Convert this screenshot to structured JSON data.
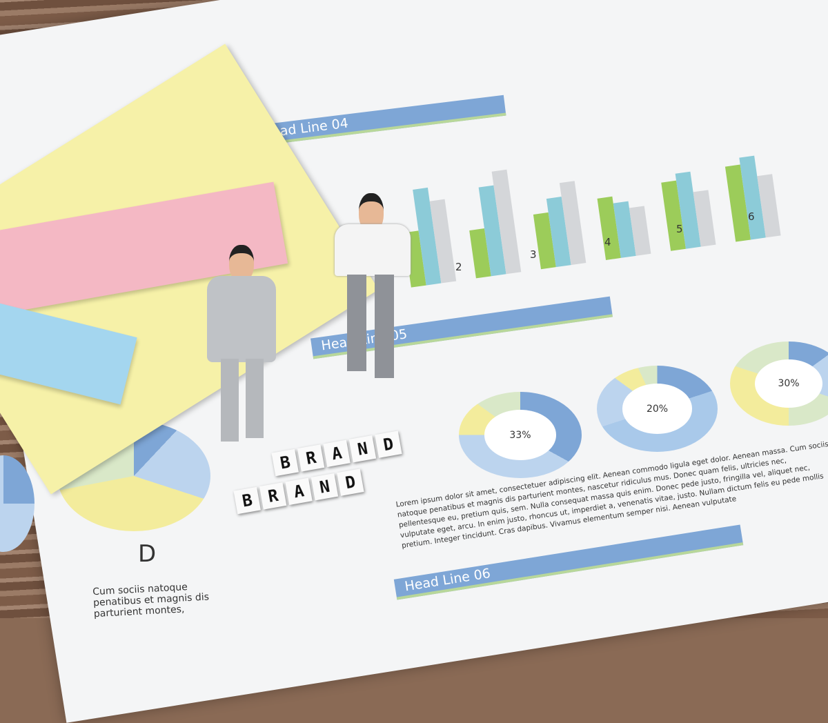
{
  "headlines": [
    "Head Line 04",
    "Head Line 05",
    "Head Line 06"
  ],
  "bar_labels": [
    "2",
    "3",
    "4",
    "5",
    "6"
  ],
  "donuts": [
    {
      "label": "33%"
    },
    {
      "label": "20%"
    },
    {
      "label": "30%"
    }
  ],
  "pie_label": "D",
  "pie_caption": "Cum sociis natoque penatibus et magnis dis parturient montes,",
  "blocks": {
    "top": "BRAND",
    "bottom": "BRAND"
  },
  "lorem": "Lorem ipsum dolor sit amet, consectetuer adipiscing elit. Aenean commodo ligula eget dolor. Aenean massa. Cum sociis natoque penatibus et magnis dis parturient montes, nascetur ridiculus mus. Donec quam felis, ultricies nec, pellentesque eu, pretium quis, sem. Nulla consequat massa quis enim. Donec pede justo, fringilla vel, aliquet nec, vulputate eget, arcu. In enim justo, rhoncus ut, imperdiet a, venenatis vitae, justo. Nullam dictum felis eu pede mollis pretium. Integer tincidunt. Cras dapibus. Vivamus elementum semper nisi. Aenean vulputate",
  "colors": {
    "blue": "#7ea6d6",
    "green": "#9ccc5a",
    "teal": "#8ccbd8",
    "gray": "#d4d6d9",
    "yellow": "#f3f0a8",
    "pink": "#f3b3c0",
    "sky": "#9fd0ec"
  }
}
